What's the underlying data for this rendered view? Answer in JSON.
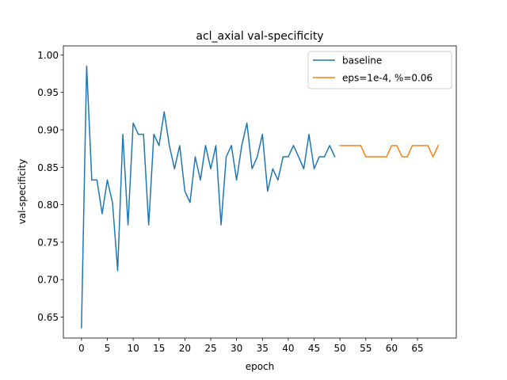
{
  "chart_data": {
    "type": "line",
    "title": "acl_axial val-specificity",
    "xlabel": "epoch",
    "ylabel": "val-specificity",
    "xlim": [
      -3.5,
      72.5
    ],
    "ylim": [
      0.622,
      1.012
    ],
    "xticks": [
      0,
      5,
      10,
      15,
      20,
      25,
      30,
      35,
      40,
      45,
      50,
      55,
      60,
      65
    ],
    "yticks": [
      0.65,
      0.7,
      0.75,
      0.8,
      0.85,
      0.9,
      0.95,
      1.0
    ],
    "ytick_labels": [
      "0.65",
      "0.70",
      "0.75",
      "0.80",
      "0.85",
      "0.90",
      "0.95",
      "1.00"
    ],
    "grid": false,
    "legend_position": "upper right",
    "series": [
      {
        "name": "baseline",
        "color": "#1f77b4",
        "x": [
          0,
          1,
          2,
          3,
          4,
          5,
          6,
          7,
          8,
          9,
          10,
          11,
          12,
          13,
          14,
          15,
          16,
          17,
          18,
          19,
          20,
          21,
          22,
          23,
          24,
          25,
          26,
          27,
          28,
          29,
          30,
          31,
          32,
          33,
          34,
          35,
          36,
          37,
          38,
          39,
          40,
          41,
          42,
          43,
          44,
          45,
          46,
          47,
          48,
          49
        ],
        "values": [
          0.636,
          0.985,
          0.833,
          0.833,
          0.788,
          0.833,
          0.803,
          0.712,
          0.894,
          0.773,
          0.909,
          0.894,
          0.894,
          0.773,
          0.894,
          0.879,
          0.924,
          0.879,
          0.848,
          0.879,
          0.818,
          0.803,
          0.864,
          0.833,
          0.879,
          0.848,
          0.879,
          0.773,
          0.864,
          0.879,
          0.833,
          0.879,
          0.909,
          0.848,
          0.864,
          0.894,
          0.818,
          0.848,
          0.833,
          0.864,
          0.864,
          0.879,
          0.864,
          0.848,
          0.894,
          0.848,
          0.864,
          0.864,
          0.879,
          0.864
        ]
      },
      {
        "name": "eps=1e-4, %=0.06",
        "color": "#ff7f0e",
        "x": [
          50,
          51,
          52,
          53,
          54,
          55,
          56,
          57,
          58,
          59,
          60,
          61,
          62,
          63,
          64,
          65,
          66,
          67,
          68,
          69
        ],
        "values": [
          0.879,
          0.879,
          0.879,
          0.879,
          0.879,
          0.864,
          0.864,
          0.864,
          0.864,
          0.864,
          0.879,
          0.879,
          0.864,
          0.864,
          0.879,
          0.879,
          0.879,
          0.879,
          0.864,
          0.879
        ]
      }
    ]
  }
}
